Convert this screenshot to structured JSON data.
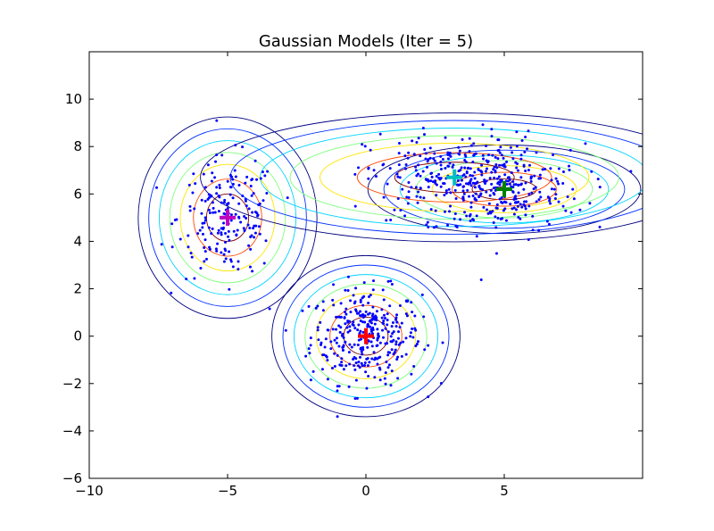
{
  "chart_data": {
    "type": "scatter",
    "title": "Gaussian Models (Iter = 5)",
    "xlabel": "",
    "ylabel": "",
    "xlim": [
      -10,
      10
    ],
    "ylim": [
      -6,
      12
    ],
    "xticks": [
      -10,
      -5,
      0,
      5
    ],
    "yticks": [
      -6,
      -4,
      -2,
      0,
      2,
      4,
      6,
      8,
      10
    ],
    "xtick_labels": [
      "−10",
      "−5",
      "0",
      "5"
    ],
    "ytick_labels": [
      "−6",
      "−4",
      "−2",
      "0",
      "2",
      "4",
      "6",
      "8",
      "10"
    ],
    "grid": false,
    "legend": "none",
    "point_color": "#0000ff",
    "contour_colors": [
      "#00007f",
      "#0030ff",
      "#00d4ff",
      "#7dff7a",
      "#ffe500",
      "#ff4800",
      "#7f0000"
    ],
    "contour_scales": [
      3.4,
      3.0,
      2.6,
      2.2,
      1.8,
      1.3,
      0.8
    ],
    "clusters": [
      {
        "mean": [
          0,
          0
        ],
        "sd": [
          1.0,
          1.0
        ],
        "n": 330,
        "color": "#ff0000"
      },
      {
        "mean": [
          -5,
          5
        ],
        "sd": [
          0.9,
          1.25
        ],
        "n": 190,
        "color": "#bf00bf"
      },
      {
        "mean": [
          5,
          6.2
        ],
        "sd": [
          1.45,
          0.95
        ],
        "n": 200,
        "color": "#008000"
      },
      {
        "mean": [
          3.2,
          6.7
        ],
        "sd": [
          1.6,
          0.95
        ],
        "n": 260,
        "color": "#00bfbf"
      }
    ],
    "components": [
      {
        "mean": [
          0,
          0
        ],
        "sd": [
          1.0,
          1.0
        ],
        "color": "#ff0000"
      },
      {
        "mean": [
          -5,
          5
        ],
        "sd": [
          0.95,
          1.25
        ],
        "color": "#bf00bf"
      },
      {
        "mean": [
          5,
          6.2
        ],
        "sd": [
          1.45,
          0.55
        ],
        "color": "#008000"
      },
      {
        "mean": [
          3.2,
          6.7
        ],
        "sd": [
          2.7,
          0.8
        ],
        "color": "#00bfbf"
      }
    ]
  }
}
